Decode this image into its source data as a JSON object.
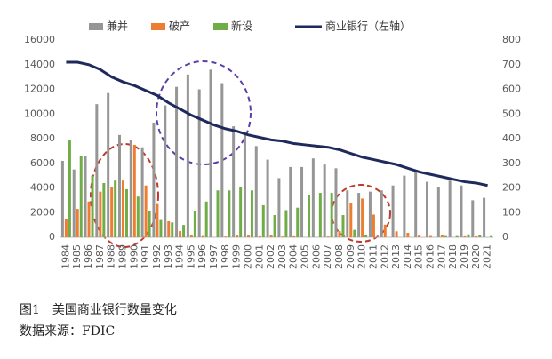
{
  "chart_data": {
    "type": "bar-line",
    "categories": [
      "1984",
      "1985",
      "1986",
      "1987",
      "1988",
      "1989",
      "1990",
      "1991",
      "1992",
      "1993",
      "1994",
      "1995",
      "1996",
      "1997",
      "1998",
      "1999",
      "2000",
      "2001",
      "2002",
      "2003",
      "2004",
      "2005",
      "2006",
      "2007",
      "2008",
      "2009",
      "2010",
      "2011",
      "2012",
      "2013",
      "2014",
      "2015",
      "2016",
      "2017",
      "2018",
      "2019",
      "2020",
      "2021"
    ],
    "series": [
      {
        "name": "兼并",
        "color": "#969696",
        "axis": "y2",
        "kind": "bar",
        "values": [
          310,
          275,
          330,
          540,
          585,
          415,
          395,
          365,
          465,
          535,
          610,
          660,
          600,
          680,
          625,
          450,
          415,
          370,
          315,
          240,
          285,
          285,
          320,
          295,
          280,
          190,
          180,
          185,
          190,
          210,
          250,
          270,
          225,
          205,
          230,
          210,
          150,
          160
        ]
      },
      {
        "name": "破产",
        "color": "#ed7d31",
        "axis": "y2",
        "kind": "bar",
        "values": [
          75,
          115,
          145,
          185,
          205,
          230,
          375,
          210,
          135,
          65,
          25,
          10,
          5,
          0,
          3,
          7,
          7,
          4,
          10,
          3,
          4,
          0,
          0,
          3,
          25,
          140,
          157,
          92,
          51,
          24,
          18,
          8,
          5,
          8,
          0,
          4,
          4,
          0
        ]
      },
      {
        "name": "新设",
        "color": "#70ad47",
        "axis": "y2",
        "kind": "bar",
        "values": [
          395,
          330,
          250,
          220,
          230,
          195,
          165,
          105,
          70,
          60,
          50,
          105,
          145,
          190,
          190,
          205,
          190,
          130,
          90,
          110,
          120,
          170,
          180,
          180,
          90,
          30,
          11,
          0,
          0,
          0,
          0,
          0,
          0,
          5,
          5,
          12,
          10,
          5
        ]
      },
      {
        "name": "商业银行（左轴）",
        "color": "#1f2a5c",
        "axis": "y",
        "kind": "line",
        "values": [
          14200,
          14200,
          14000,
          13600,
          13000,
          12600,
          12300,
          11900,
          11500,
          10900,
          10400,
          9900,
          9500,
          9100,
          8800,
          8600,
          8300,
          8100,
          7900,
          7800,
          7600,
          7500,
          7400,
          7300,
          7100,
          6800,
          6500,
          6300,
          6100,
          5900,
          5600,
          5300,
          5100,
          4900,
          4700,
          4500,
          4400,
          4200
        ]
      }
    ],
    "ylim": [
      0,
      16000
    ],
    "yticks": [
      0,
      2000,
      4000,
      6000,
      8000,
      10000,
      12000,
      14000,
      16000
    ],
    "y2lim": [
      0,
      800
    ],
    "y2ticks": [
      0,
      100,
      200,
      300,
      400,
      500,
      600,
      700,
      800
    ],
    "caption": "图1　美国商业银行数量变化",
    "source": "数据来源：FDIC"
  }
}
